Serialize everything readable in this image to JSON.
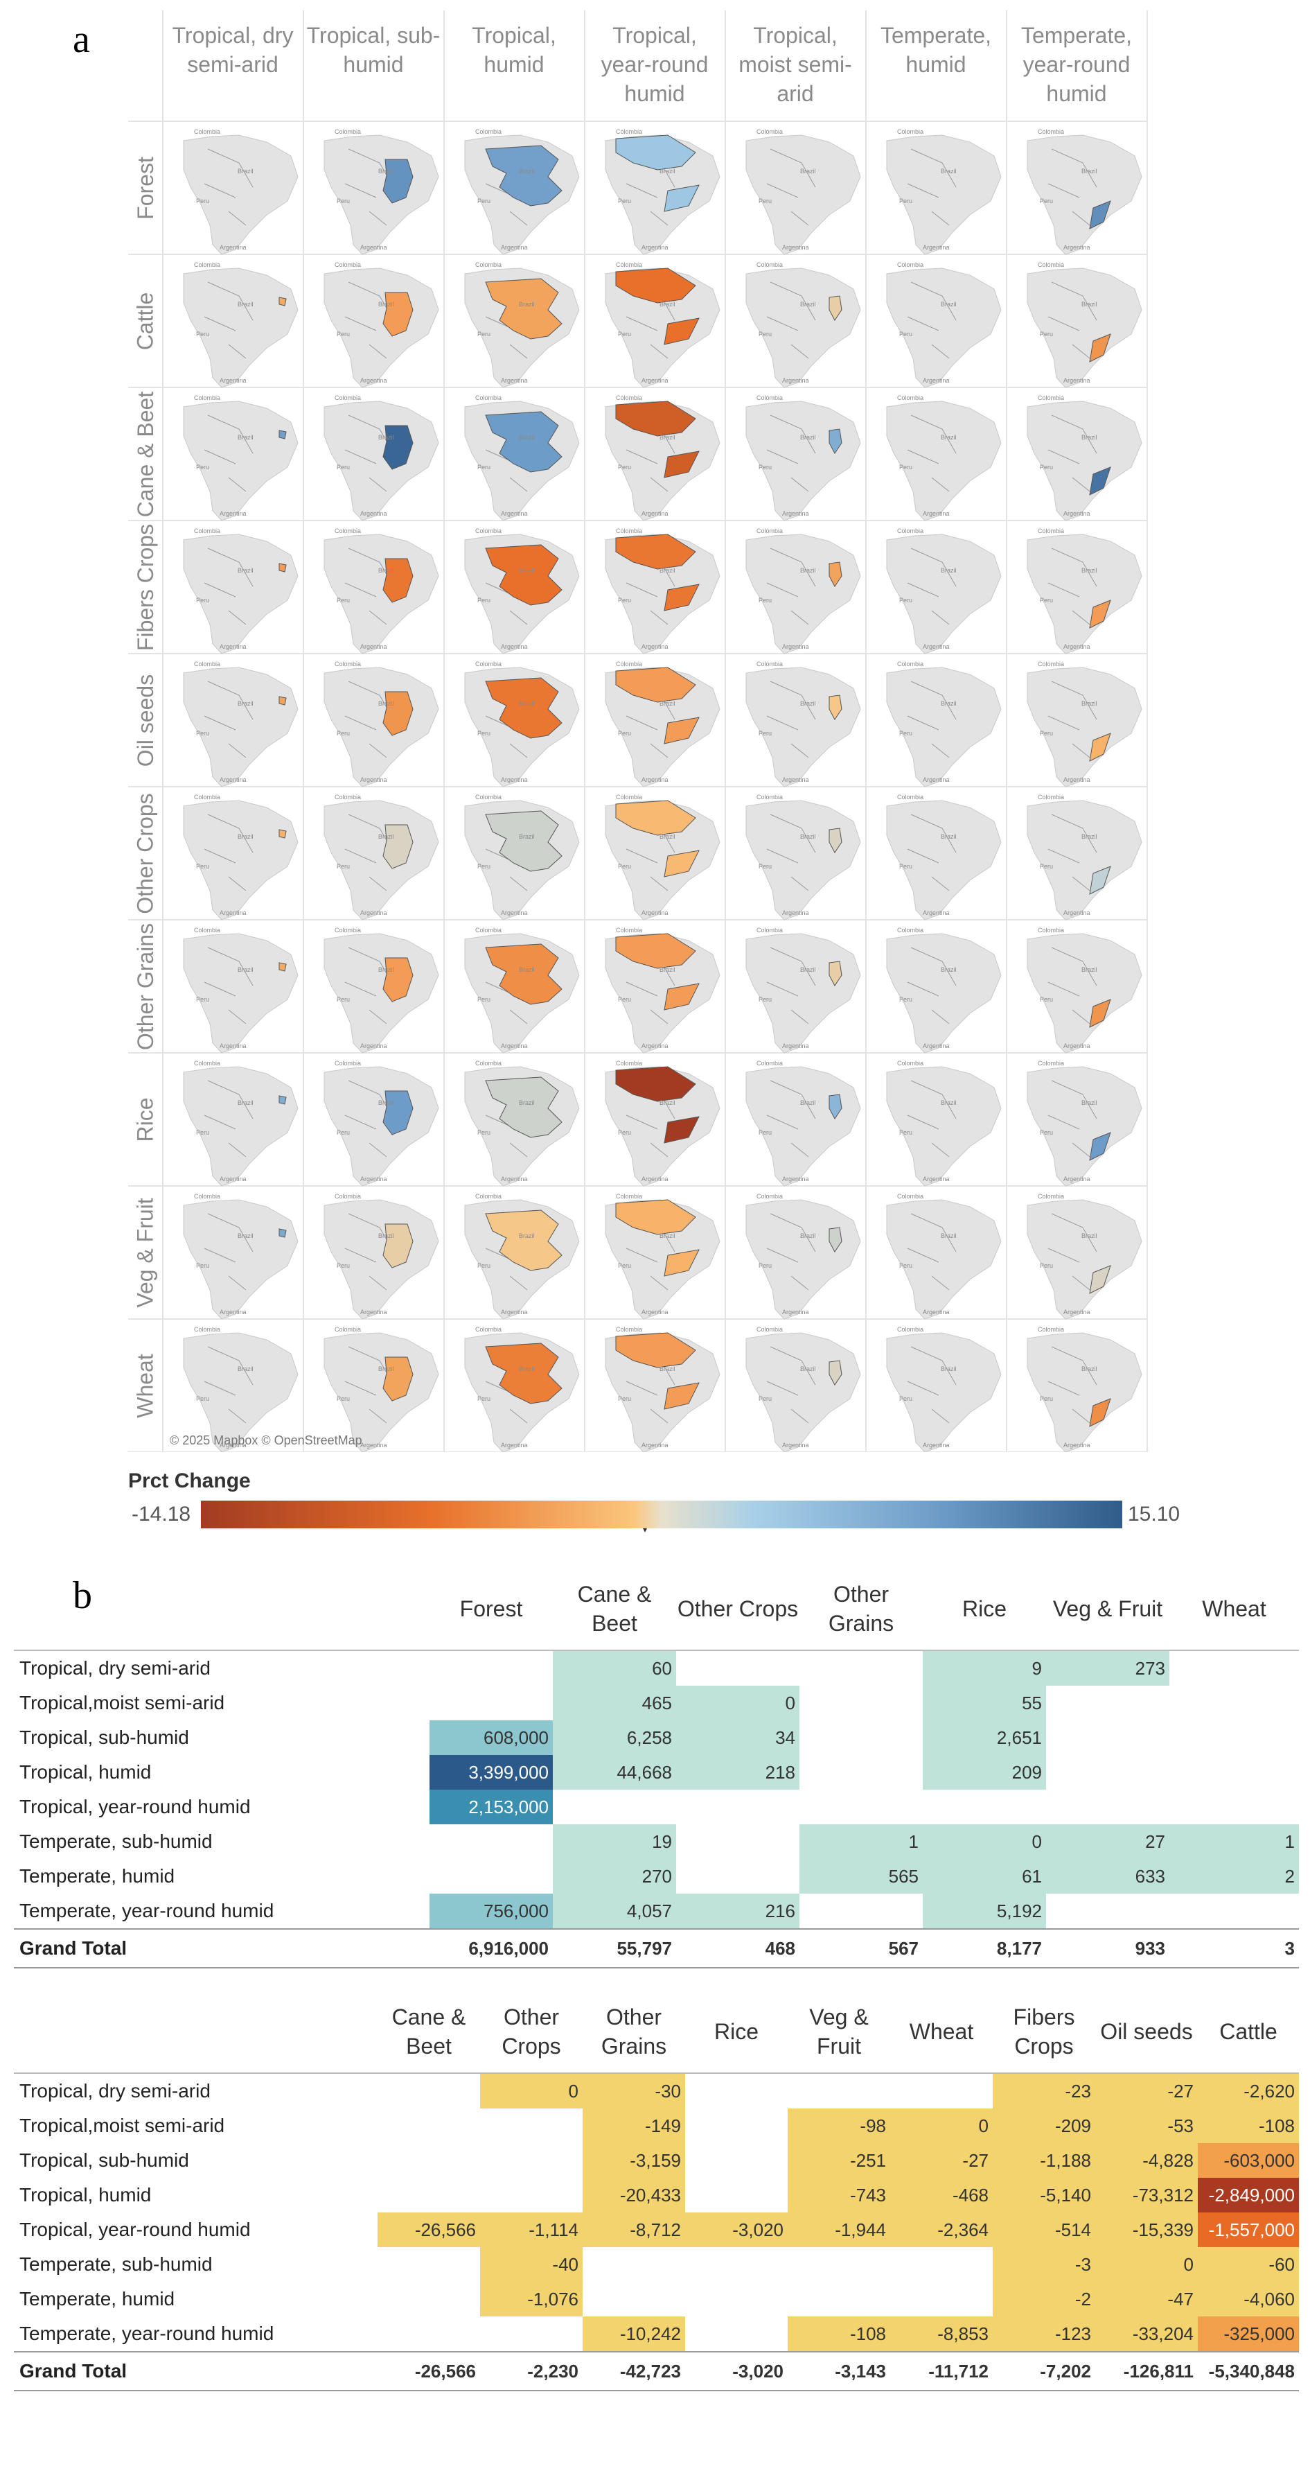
{
  "panel_a": {
    "letter": "a",
    "columns": [
      "Tropical, dry semi-arid",
      "Tropical, sub-humid",
      "Tropical, humid",
      "Tropical, year-round humid",
      "Tropical, moist semi-arid",
      "Temperate, humid",
      "Temperate, year-round humid"
    ],
    "rows": [
      "Forest",
      "Cattle",
      "Cane & Beet",
      "Fibers Crops",
      "Oil seeds",
      "Other Crops",
      "Other Grains",
      "Rice",
      "Veg & Fruit",
      "Wheat"
    ],
    "map_labels": {
      "country_brazil": "Brazil",
      "country_peru": "Peru",
      "country_argentina": "Argentina",
      "country_colombia": "Colombia"
    },
    "copyright": "© 2025 Mapbox © OpenStreetMap",
    "legend": {
      "title": "Prct Change",
      "min_label": "-14.18",
      "max_label": "15.10"
    },
    "colors": {
      "neg_strong": "#a23b22",
      "neg": "#e8702a",
      "neg_light": "#fbc67d",
      "neutral": "#d9d3c4",
      "pos_light": "#a8d0e8",
      "pos": "#6e9cc8",
      "pos_strong": "#2f5c8a",
      "land": "#e3e3e3"
    },
    "chart_data": {
      "type": "heatmap",
      "x": [
        "Tropical, dry semi-arid",
        "Tropical, sub-humid",
        "Tropical, humid",
        "Tropical, year-round humid",
        "Tropical, moist semi-arid",
        "Temperate, humid",
        "Temperate, year-round humid"
      ],
      "y": [
        "Forest",
        "Cattle",
        "Cane & Beet",
        "Fibers Crops",
        "Oil seeds",
        "Other Crops",
        "Other Grains",
        "Rice",
        "Veg & Fruit",
        "Wheat"
      ],
      "values": [
        [
          null,
          9.0,
          7.5,
          3.0,
          null,
          null,
          9.5
        ],
        [
          -3.0,
          -4.0,
          -3.5,
          -7.0,
          -0.5,
          null,
          -4.5
        ],
        [
          7.5,
          14.0,
          8.0,
          -9.5,
          6.0,
          null,
          12.5
        ],
        [
          -4.0,
          -6.5,
          -7.0,
          -6.5,
          -3.5,
          null,
          -4.0
        ],
        [
          -3.5,
          -4.5,
          -6.5,
          -4.0,
          -1.0,
          null,
          -2.5
        ],
        [
          -2.5,
          0.0,
          0.5,
          -2.0,
          0.0,
          null,
          1.0
        ],
        [
          -3.0,
          -4.0,
          -5.0,
          -4.0,
          -0.5,
          null,
          -4.5
        ],
        [
          6.0,
          8.0,
          0.5,
          -14.18,
          5.0,
          null,
          8.0
        ],
        [
          6.5,
          -0.5,
          -1.0,
          -2.5,
          0.5,
          null,
          0.0
        ],
        [
          null,
          -3.5,
          -6.0,
          -4.0,
          0.0,
          null,
          -5.0
        ]
      ],
      "color_scale": {
        "min": -14.18,
        "max": 15.1
      }
    }
  },
  "panel_b": {
    "letter": "b",
    "table1": {
      "columns": [
        "Forest",
        "Cane & Beet",
        "Other Crops",
        "Other Grains",
        "Rice",
        "Veg & Fruit",
        "Wheat"
      ],
      "rows": [
        {
          "label": "Tropical, dry semi-arid",
          "cells": [
            "",
            "60",
            "",
            "",
            "9",
            "273",
            ""
          ]
        },
        {
          "label": "Tropical,moist semi-arid",
          "cells": [
            "",
            "465",
            "0",
            "",
            "55",
            "",
            ""
          ]
        },
        {
          "label": "Tropical, sub-humid",
          "cells": [
            "608,000",
            "6,258",
            "34",
            "",
            "2,651",
            "",
            ""
          ]
        },
        {
          "label": "Tropical, humid",
          "cells": [
            "3,399,000",
            "44,668",
            "218",
            "",
            "209",
            "",
            ""
          ]
        },
        {
          "label": "Tropical, year-round humid",
          "cells": [
            "2,153,000",
            "",
            "",
            "",
            "",
            "",
            ""
          ]
        },
        {
          "label": "Temperate, sub-humid",
          "cells": [
            "",
            "19",
            "",
            "1",
            "0",
            "27",
            "1"
          ]
        },
        {
          "label": "Temperate, humid",
          "cells": [
            "",
            "270",
            "",
            "565",
            "61",
            "633",
            "2"
          ]
        },
        {
          "label": "Temperate, year-round humid",
          "cells": [
            "756,000",
            "4,057",
            "216",
            "",
            "5,192",
            "",
            ""
          ]
        }
      ],
      "total": {
        "label": "Grand Total",
        "cells": [
          "6,916,000",
          "55,797",
          "468",
          "567",
          "8,177",
          "933",
          "3"
        ]
      }
    },
    "table2": {
      "columns": [
        "Cane & Beet",
        "Other Crops",
        "Other Grains",
        "Rice",
        "Veg & Fruit",
        "Wheat",
        "Fibers Crops",
        "Oil seeds",
        "Cattle"
      ],
      "rows": [
        {
          "label": "Tropical, dry semi-arid",
          "cells": [
            "",
            "0",
            "-30",
            "",
            "",
            "",
            "-23",
            "-27",
            "-2,620"
          ]
        },
        {
          "label": "Tropical,moist semi-arid",
          "cells": [
            "",
            "",
            "-149",
            "",
            "-98",
            "0",
            "-209",
            "-53",
            "-108"
          ]
        },
        {
          "label": "Tropical, sub-humid",
          "cells": [
            "",
            "",
            "-3,159",
            "",
            "-251",
            "-27",
            "-1,188",
            "-4,828",
            "-603,000"
          ]
        },
        {
          "label": "Tropical, humid",
          "cells": [
            "",
            "",
            "-20,433",
            "",
            "-743",
            "-468",
            "-5,140",
            "-73,312",
            "-2,849,000"
          ]
        },
        {
          "label": "Tropical, year-round humid",
          "cells": [
            "-26,566",
            "-1,114",
            "-8,712",
            "-3,020",
            "-1,944",
            "-2,364",
            "-514",
            "-15,339",
            "-1,557,000"
          ]
        },
        {
          "label": "Temperate, sub-humid",
          "cells": [
            "",
            "-40",
            "",
            "",
            "",
            "",
            "-3",
            "0",
            "-60"
          ]
        },
        {
          "label": "Temperate, humid",
          "cells": [
            "",
            "-1,076",
            "",
            "",
            "",
            "",
            "-2",
            "-47",
            "-4,060"
          ]
        },
        {
          "label": "Temperate, year-round humid",
          "cells": [
            "",
            "",
            "-10,242",
            "",
            "-108",
            "-8,853",
            "-123",
            "-33,204",
            "-325,000"
          ]
        }
      ],
      "total": {
        "label": "Grand Total",
        "cells": [
          "-26,566",
          "-2,230",
          "-42,723",
          "-3,020",
          "-3,143",
          "-11,712",
          "-7,202",
          "-126,811",
          "-5,340,848"
        ]
      }
    }
  }
}
